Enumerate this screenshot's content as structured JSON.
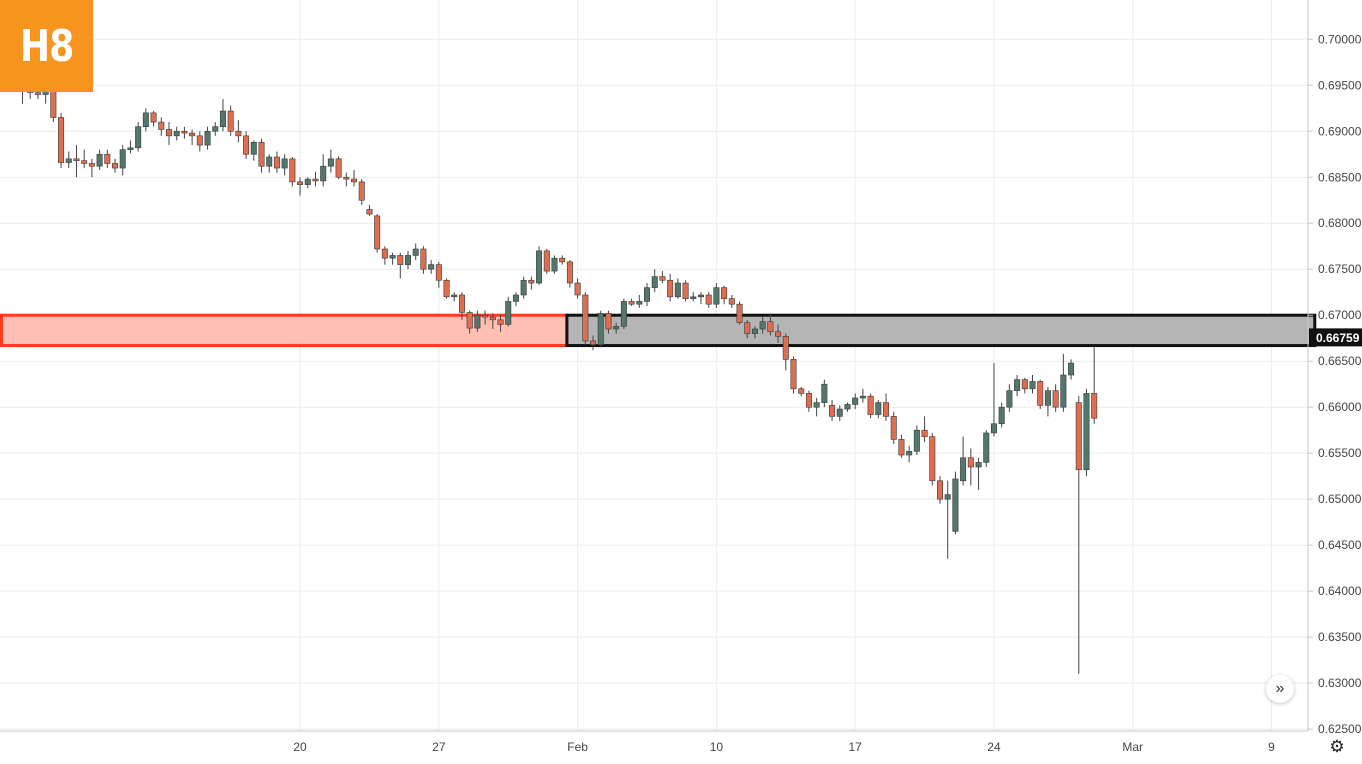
{
  "logo": {
    "text": "H8",
    "color": "#f7941d"
  },
  "controls": {
    "scroll_icon": "double-chevron-right-icon",
    "scroll_glyph": "»",
    "settings_icon": "gear-icon",
    "settings_glyph": "⚙"
  },
  "chart_data": {
    "type": "candlestick",
    "title": "",
    "xlabel": "",
    "ylabel": "",
    "ylim": [
      0.6245,
      0.7025
    ],
    "grid": true,
    "colors": {
      "up": "#53776b",
      "down": "#e06d4f",
      "wick": "#444444",
      "grid": "#ececec",
      "axis": "#c8c8c8",
      "label": "#444444"
    },
    "y_ticks": [
      "0.70000",
      "0.69500",
      "0.69000",
      "0.68500",
      "0.68000",
      "0.67500",
      "0.67000",
      "0.66500",
      "0.66000",
      "0.65500",
      "0.65000",
      "0.64500",
      "0.64000",
      "0.63500",
      "0.63000",
      "0.62500"
    ],
    "x_ticks": [
      "20",
      "27",
      "Feb",
      "10",
      "17",
      "24",
      "Mar",
      "9"
    ],
    "x_tick_index": [
      36,
      54,
      72,
      90,
      108,
      126,
      144,
      162
    ],
    "current_price": {
      "label": "0.66759",
      "value": 0.66759
    },
    "zones": [
      {
        "name": "support-zone-past",
        "y_top": 0.67,
        "y_bottom": 0.6667,
        "from_index": -2,
        "to_index": 71,
        "fill": "#ffbfb3",
        "stroke": "#ff3b1a"
      },
      {
        "name": "support-zone-retest",
        "y_top": 0.67,
        "y_bottom": 0.6667,
        "from_index": 71,
        "to_index": 168,
        "fill": "#b5b5b5",
        "stroke": "#111111"
      }
    ],
    "candles": [
      [
        0.6955,
        0.696,
        0.693,
        0.6945
      ],
      [
        0.6945,
        0.696,
        0.6935,
        0.6942
      ],
      [
        0.6942,
        0.6955,
        0.6935,
        0.694
      ],
      [
        0.694,
        0.6955,
        0.693,
        0.6945
      ],
      [
        0.6945,
        0.6948,
        0.691,
        0.6915
      ],
      [
        0.6915,
        0.692,
        0.686,
        0.6866
      ],
      [
        0.6866,
        0.6878,
        0.686,
        0.687
      ],
      [
        0.687,
        0.6885,
        0.685,
        0.6868
      ],
      [
        0.6868,
        0.688,
        0.686,
        0.6865
      ],
      [
        0.6865,
        0.687,
        0.685,
        0.6862
      ],
      [
        0.6862,
        0.688,
        0.6858,
        0.6875
      ],
      [
        0.6875,
        0.688,
        0.686,
        0.6865
      ],
      [
        0.6865,
        0.687,
        0.6855,
        0.686
      ],
      [
        0.686,
        0.6885,
        0.6852,
        0.688
      ],
      [
        0.688,
        0.689,
        0.6876,
        0.6882
      ],
      [
        0.6882,
        0.691,
        0.6878,
        0.6905
      ],
      [
        0.6905,
        0.6925,
        0.69,
        0.692
      ],
      [
        0.692,
        0.6922,
        0.6905,
        0.691
      ],
      [
        0.691,
        0.6915,
        0.6895,
        0.6902
      ],
      [
        0.6902,
        0.691,
        0.6885,
        0.6895
      ],
      [
        0.6895,
        0.6905,
        0.689,
        0.69
      ],
      [
        0.69,
        0.6905,
        0.6892,
        0.6898
      ],
      [
        0.6898,
        0.6902,
        0.6885,
        0.6895
      ],
      [
        0.6895,
        0.69,
        0.6878,
        0.6885
      ],
      [
        0.6885,
        0.6905,
        0.688,
        0.69
      ],
      [
        0.69,
        0.691,
        0.6895,
        0.6905
      ],
      [
        0.6905,
        0.6935,
        0.69,
        0.6922
      ],
      [
        0.6922,
        0.6928,
        0.6895,
        0.69
      ],
      [
        0.69,
        0.6912,
        0.6888,
        0.6895
      ],
      [
        0.6895,
        0.69,
        0.687,
        0.6875
      ],
      [
        0.6875,
        0.689,
        0.6868,
        0.6888
      ],
      [
        0.6888,
        0.6892,
        0.6855,
        0.6862
      ],
      [
        0.6862,
        0.6875,
        0.6855,
        0.6872
      ],
      [
        0.6872,
        0.6878,
        0.6855,
        0.686
      ],
      [
        0.686,
        0.6875,
        0.6852,
        0.687
      ],
      [
        0.687,
        0.6872,
        0.684,
        0.6845
      ],
      [
        0.6845,
        0.685,
        0.683,
        0.6842
      ],
      [
        0.6842,
        0.685,
        0.6838,
        0.6848
      ],
      [
        0.6848,
        0.6856,
        0.684,
        0.6846
      ],
      [
        0.6846,
        0.6875,
        0.684,
        0.6862
      ],
      [
        0.6862,
        0.688,
        0.6855,
        0.687
      ],
      [
        0.687,
        0.6873,
        0.6848,
        0.685
      ],
      [
        0.685,
        0.6855,
        0.684,
        0.6848
      ],
      [
        0.6848,
        0.6858,
        0.684,
        0.6845
      ],
      [
        0.6845,
        0.6848,
        0.682,
        0.6825
      ],
      [
        0.6815,
        0.682,
        0.6808,
        0.681
      ],
      [
        0.6808,
        0.681,
        0.6768,
        0.6772
      ],
      [
        0.6772,
        0.6775,
        0.6755,
        0.6762
      ],
      [
        0.6762,
        0.6768,
        0.6755,
        0.6765
      ],
      [
        0.6765,
        0.6768,
        0.674,
        0.6755
      ],
      [
        0.6755,
        0.677,
        0.675,
        0.6765
      ],
      [
        0.6765,
        0.6778,
        0.676,
        0.6772
      ],
      [
        0.6772,
        0.6775,
        0.6745,
        0.675
      ],
      [
        0.675,
        0.676,
        0.6745,
        0.6755
      ],
      [
        0.6755,
        0.6758,
        0.673,
        0.6738
      ],
      [
        0.6738,
        0.674,
        0.6718,
        0.672
      ],
      [
        0.672,
        0.6725,
        0.6715,
        0.6722
      ],
      [
        0.6722,
        0.6725,
        0.6695,
        0.6703
      ],
      [
        0.6703,
        0.6705,
        0.668,
        0.6686
      ],
      [
        0.6686,
        0.6705,
        0.6682,
        0.67
      ],
      [
        0.67,
        0.6705,
        0.669,
        0.6698
      ],
      [
        0.6698,
        0.6702,
        0.6685,
        0.6695
      ],
      [
        0.6695,
        0.67,
        0.6682,
        0.669
      ],
      [
        0.669,
        0.672,
        0.6688,
        0.6715
      ],
      [
        0.6715,
        0.6725,
        0.671,
        0.6722
      ],
      [
        0.6722,
        0.6742,
        0.6718,
        0.6738
      ],
      [
        0.6738,
        0.6742,
        0.6728,
        0.6735
      ],
      [
        0.6735,
        0.6775,
        0.6733,
        0.677
      ],
      [
        0.677,
        0.6772,
        0.6745,
        0.6748
      ],
      [
        0.6748,
        0.6765,
        0.6745,
        0.6762
      ],
      [
        0.6762,
        0.6765,
        0.6755,
        0.6758
      ],
      [
        0.6758,
        0.676,
        0.673,
        0.6735
      ],
      [
        0.6735,
        0.674,
        0.6718,
        0.6722
      ],
      [
        0.6722,
        0.6725,
        0.6668,
        0.6672
      ],
      [
        0.6672,
        0.6678,
        0.6662,
        0.6668
      ],
      [
        0.6668,
        0.6705,
        0.6665,
        0.6702
      ],
      [
        0.6702,
        0.6705,
        0.668,
        0.6685
      ],
      [
        0.6685,
        0.6692,
        0.668,
        0.6688
      ],
      [
        0.6688,
        0.6718,
        0.6685,
        0.6715
      ],
      [
        0.6715,
        0.6718,
        0.671,
        0.6712
      ],
      [
        0.6712,
        0.6722,
        0.6708,
        0.6715
      ],
      [
        0.6715,
        0.6735,
        0.671,
        0.673
      ],
      [
        0.673,
        0.675,
        0.6725,
        0.6742
      ],
      [
        0.6742,
        0.6748,
        0.6735,
        0.6738
      ],
      [
        0.6738,
        0.6745,
        0.6715,
        0.672
      ],
      [
        0.672,
        0.674,
        0.6718,
        0.6735
      ],
      [
        0.6735,
        0.6738,
        0.6715,
        0.6718
      ],
      [
        0.6718,
        0.6725,
        0.6715,
        0.672
      ],
      [
        0.672,
        0.6725,
        0.6712,
        0.6722
      ],
      [
        0.6722,
        0.6725,
        0.6708,
        0.6712
      ],
      [
        0.6712,
        0.6735,
        0.6708,
        0.673
      ],
      [
        0.673,
        0.6732,
        0.6712,
        0.6718
      ],
      [
        0.6718,
        0.6722,
        0.6708,
        0.6712
      ],
      [
        0.6712,
        0.6715,
        0.669,
        0.6692
      ],
      [
        0.6692,
        0.6695,
        0.6675,
        0.668
      ],
      [
        0.668,
        0.6688,
        0.6675,
        0.6685
      ],
      [
        0.6685,
        0.6698,
        0.668,
        0.6693
      ],
      [
        0.6693,
        0.6702,
        0.6678,
        0.6682
      ],
      [
        0.6682,
        0.669,
        0.667,
        0.6677
      ],
      [
        0.6677,
        0.668,
        0.664,
        0.6652
      ],
      [
        0.6652,
        0.6655,
        0.6615,
        0.662
      ],
      [
        0.662,
        0.6622,
        0.6612,
        0.6615
      ],
      [
        0.6615,
        0.6618,
        0.6595,
        0.66
      ],
      [
        0.66,
        0.661,
        0.659,
        0.6605
      ],
      [
        0.6605,
        0.663,
        0.66,
        0.6625
      ],
      [
        0.6602,
        0.6608,
        0.6585,
        0.659
      ],
      [
        0.659,
        0.6602,
        0.6585,
        0.6598
      ],
      [
        0.6598,
        0.6605,
        0.6595,
        0.6603
      ],
      [
        0.6603,
        0.6615,
        0.6598,
        0.661
      ],
      [
        0.661,
        0.662,
        0.6605,
        0.6612
      ],
      [
        0.6612,
        0.6615,
        0.6588,
        0.6592
      ],
      [
        0.6592,
        0.6608,
        0.6588,
        0.6605
      ],
      [
        0.6605,
        0.6615,
        0.6585,
        0.659
      ],
      [
        0.659,
        0.6595,
        0.656,
        0.6565
      ],
      [
        0.6565,
        0.657,
        0.6545,
        0.6548
      ],
      [
        0.6548,
        0.6558,
        0.654,
        0.6552
      ],
      [
        0.6552,
        0.658,
        0.6548,
        0.6575
      ],
      [
        0.6575,
        0.659,
        0.6562,
        0.6568
      ],
      [
        0.6568,
        0.6572,
        0.6515,
        0.652
      ],
      [
        0.652,
        0.6525,
        0.6495,
        0.65
      ],
      [
        0.65,
        0.652,
        0.6435,
        0.6505
      ],
      [
        0.6465,
        0.653,
        0.6462,
        0.6522
      ],
      [
        0.652,
        0.6568,
        0.6515,
        0.6545
      ],
      [
        0.6545,
        0.6555,
        0.6515,
        0.6535
      ],
      [
        0.6535,
        0.6545,
        0.651,
        0.654
      ],
      [
        0.654,
        0.6575,
        0.6535,
        0.6572
      ],
      [
        0.6572,
        0.6648,
        0.6568,
        0.6582
      ],
      [
        0.6582,
        0.6605,
        0.6578,
        0.66
      ],
      [
        0.66,
        0.6625,
        0.6595,
        0.6618
      ],
      [
        0.6618,
        0.6635,
        0.6612,
        0.663
      ],
      [
        0.663,
        0.6632,
        0.6615,
        0.662
      ],
      [
        0.662,
        0.6635,
        0.6615,
        0.6628
      ],
      [
        0.6628,
        0.663,
        0.6598,
        0.6602
      ],
      [
        0.6602,
        0.6622,
        0.659,
        0.6618
      ],
      [
        0.6618,
        0.6625,
        0.6595,
        0.66
      ],
      [
        0.66,
        0.6658,
        0.6595,
        0.6635
      ],
      [
        0.6635,
        0.6652,
        0.663,
        0.6648
      ],
      [
        0.6605,
        0.6612,
        0.631,
        0.6532
      ],
      [
        0.6532,
        0.662,
        0.6525,
        0.6615
      ],
      [
        0.6615,
        0.6665,
        0.6582,
        0.6588
      ]
    ]
  }
}
